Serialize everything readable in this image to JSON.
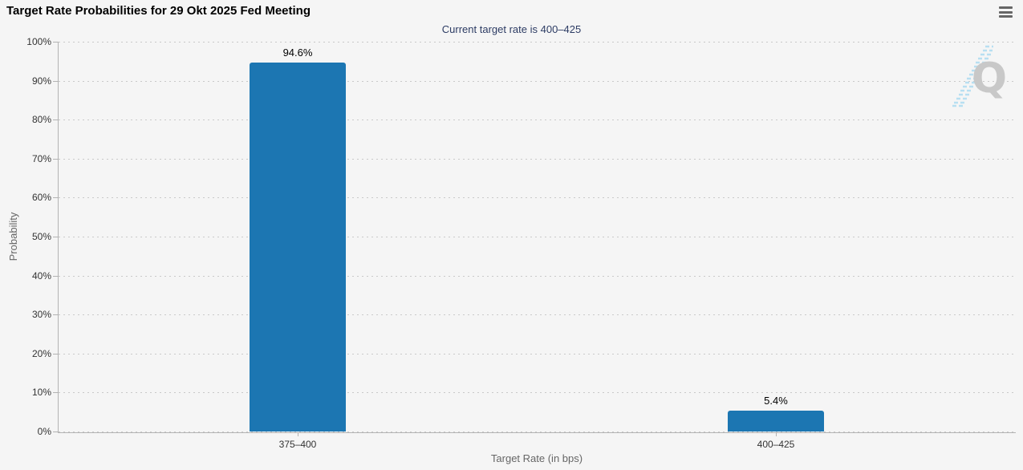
{
  "header": {
    "title": "Target Rate Probabilities for 29 Okt 2025 Fed Meeting",
    "subtitle": "Current target rate is 400–425"
  },
  "toolbar": {
    "menu_icon": "hamburger-menu-icon"
  },
  "watermark": {
    "letter": "Q"
  },
  "chart_data": {
    "type": "bar",
    "title": "Target Rate Probabilities for 29 Okt 2025 Fed Meeting",
    "subtitle": "Current target rate is 400–425",
    "categories": [
      "375–400",
      "400–425"
    ],
    "values": [
      94.6,
      5.4
    ],
    "value_labels": [
      "94.6%",
      "5.4%"
    ],
    "xlabel": "Target Rate (in bps)",
    "ylabel": "Probability",
    "ylim": [
      0,
      100
    ],
    "ytick_step": 10,
    "ytick_labels": [
      "0%",
      "10%",
      "20%",
      "30%",
      "40%",
      "50%",
      "60%",
      "70%",
      "80%",
      "90%",
      "100%"
    ],
    "grid": "dotted-horizontal",
    "legend": "none",
    "bar_color": "#1c76b2",
    "background_color": "#f5f5f5",
    "subtitle_color": "#2d3c64",
    "axis_color": "#b3b3b3"
  }
}
